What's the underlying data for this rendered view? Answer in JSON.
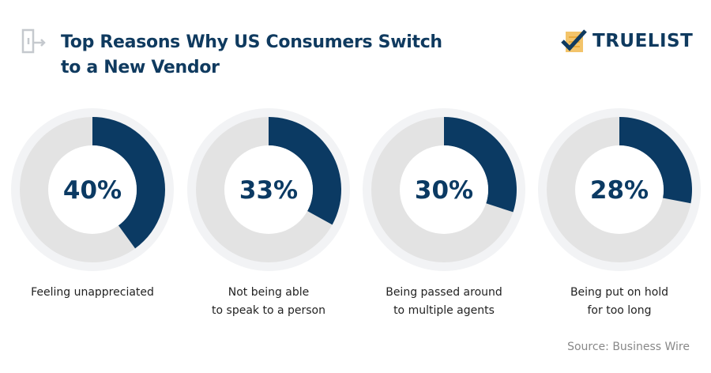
{
  "header": {
    "title_line1": "Top Reasons Why US Consumers Switch",
    "title_line2": "to a New Vendor",
    "logo_text": "TRUELIST"
  },
  "colors": {
    "filled": "#0b3a63",
    "remaining": "#e3e3e3",
    "halo": "#f2f3f5",
    "title": "#0f3a5f"
  },
  "chart_data": {
    "type": "pie",
    "subtype": "donut",
    "categories": [
      "Feeling unappreciated",
      "Not being able to speak to a person",
      "Being passed around to multiple agents",
      "Being put on hold for too long"
    ],
    "values": [
      40,
      33,
      30,
      28
    ],
    "value_labels": [
      "40%",
      "33%",
      "30%",
      "28%"
    ],
    "label_lines": [
      [
        "Feeling unappreciated"
      ],
      [
        "Not being able",
        "to speak to a person"
      ],
      [
        "Being passed around",
        "to multiple agents"
      ],
      [
        "Being put on hold",
        "for too long"
      ]
    ]
  },
  "source": "Source: Business Wire"
}
